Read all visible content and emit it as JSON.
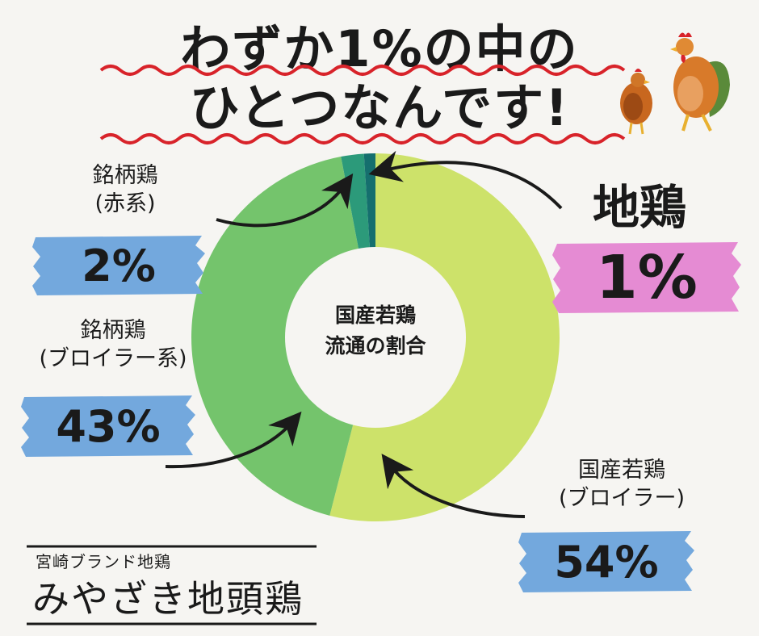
{
  "title": {
    "line1": "わずか1%の中の",
    "line2": "ひとつなんです!"
  },
  "colors": {
    "broiler": "#cde26a",
    "brand_broiler": "#74c46c",
    "brand_red": "#2c9a7a",
    "jidori": "#156f6e",
    "blue_badge": "#73a8dd",
    "pink_badge": "#e58bd3",
    "wave": "#d8232a"
  },
  "chart_data": {
    "type": "pie",
    "center_label": [
      "国産若鶏",
      "流通の割合"
    ],
    "slices": [
      {
        "name": "国産若鶏(ブロイラー)",
        "label_lines": [
          "国産若鶏",
          "(ブロイラー)"
        ],
        "value": 54,
        "value_label": "54%"
      },
      {
        "name": "銘柄鶏(ブロイラー系)",
        "label_lines": [
          "銘柄鶏",
          "(ブロイラー系)"
        ],
        "value": 43,
        "value_label": "43%"
      },
      {
        "name": "銘柄鶏(赤系)",
        "label_lines": [
          "銘柄鶏",
          "(赤系)"
        ],
        "value": 2,
        "value_label": "2%"
      },
      {
        "name": "地鶏",
        "label_lines": [
          "地鶏"
        ],
        "value": 1,
        "value_label": "1%"
      }
    ]
  },
  "brand": {
    "subtitle": "宮崎ブランド地鶏",
    "name": "みやざき地頭鶏"
  },
  "icons": [
    "rooster-icon",
    "hen-icon",
    "curved-arrow-icon"
  ]
}
